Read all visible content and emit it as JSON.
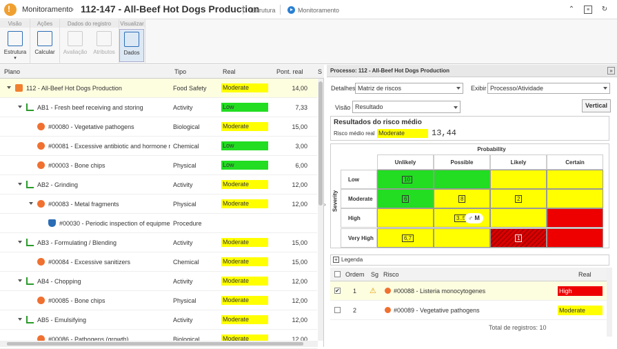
{
  "header": {
    "module": "Monitoramento",
    "title": "112-147 - All-Beef Hot Dogs Production",
    "link_estrutura": "Estrutura",
    "link_monitoramento": "Monitoramento"
  },
  "toolbar": {
    "groups": [
      "Visão",
      "Ações",
      "Dados do registro",
      "Visualizar"
    ],
    "buttons": {
      "estrutura": "Estrutura",
      "calcular": "Calcular",
      "avaliacao": "Avaliação",
      "atributos": "Atributos",
      "dados": "Dados"
    }
  },
  "grid": {
    "columns": {
      "plano": "Plano",
      "tipo": "Tipo",
      "real": "Real",
      "pont": "Pont. real",
      "s": "S"
    },
    "rows": [
      {
        "name": "112 - All-Beef Hot Dogs Production",
        "tipo": "Food Safety",
        "real": "Moderate",
        "pont": "14,00"
      },
      {
        "name": "AB1 - Fresh beef receiving and storing",
        "tipo": "Activity",
        "real": "Low",
        "pont": "7,33"
      },
      {
        "name": "#00080 - Vegetative pathogens",
        "tipo": "Biological",
        "real": "Moderate",
        "pont": "15,00"
      },
      {
        "name": "#00081 - Excessive antibiotic and hormone residues",
        "tipo": "Chemical",
        "real": "Low",
        "pont": "3,00"
      },
      {
        "name": "#00003 - Bone chips",
        "tipo": "Physical",
        "real": "Low",
        "pont": "6,00"
      },
      {
        "name": "AB2 - Grinding",
        "tipo": "Activity",
        "real": "Moderate",
        "pont": "12,00"
      },
      {
        "name": "#00083 - Metal fragments",
        "tipo": "Physical",
        "real": "Moderate",
        "pont": "12,00"
      },
      {
        "name": "#00030 - Periodic inspection of equipment",
        "tipo": "Procedure",
        "real": "",
        "pont": ""
      },
      {
        "name": "AB3 - Formulating / Blending",
        "tipo": "Activity",
        "real": "Moderate",
        "pont": "15,00"
      },
      {
        "name": "#00084 - Excessive sanitizers",
        "tipo": "Chemical",
        "real": "Moderate",
        "pont": "15,00"
      },
      {
        "name": "AB4 - Chopping",
        "tipo": "Activity",
        "real": "Moderate",
        "pont": "12,00"
      },
      {
        "name": "#00085 - Bone chips",
        "tipo": "Physical",
        "real": "Moderate",
        "pont": "12,00"
      },
      {
        "name": "AB5 - Emulsifying",
        "tipo": "Activity",
        "real": "Moderate",
        "pont": "12,00"
      },
      {
        "name": "#00086 - Pathogens (growth)",
        "tipo": "Biological",
        "real": "Moderate",
        "pont": "12,00"
      }
    ]
  },
  "right": {
    "title": "Processo: 112 - All-Beef Hot Dogs Production",
    "detalhes_label": "Detalhes",
    "detalhes_value": "Matriz de riscos",
    "exibir_label": "Exibir",
    "exibir_value": "Processo/Atividade",
    "visao_label": "Visão",
    "visao_value": "Resultado",
    "vertical_btn": "Vertical",
    "results_title": "Resultados do risco médio",
    "risco_label": "Risco médio real",
    "risco_value": "Moderate",
    "risco_score": "13,44",
    "matrix": {
      "x_title": "Probability",
      "y_title": "Severity",
      "cols": [
        "Unlikely",
        "Possible",
        "Likely",
        "Certain"
      ],
      "rows": [
        "Low",
        "Moderate",
        "High",
        "Very High"
      ],
      "counts": {
        "low_unlikely": "10",
        "mod_unlikely": "6",
        "mod_possible": "8",
        "mod_likely": "2",
        "high_possible": "3..5",
        "vh_unlikely": "6,7",
        "vh_likely": "1"
      },
      "marker": "M"
    },
    "legend": "Legenda",
    "table": {
      "cols": {
        "ordem": "Ordem",
        "sg": "Sg",
        "risco": "Risco",
        "real": "Real"
      },
      "rows": [
        {
          "ordem": "1",
          "risco": "#00088 - Listeria monocytogenes",
          "real": "High"
        },
        {
          "ordem": "2",
          "risco": "#00089 - Vegetative pathogens",
          "real": "Moderate"
        }
      ],
      "total": "Total de registros: 10"
    }
  },
  "colors": {
    "yellow": "#ffff00",
    "green": "#22dd22",
    "red": "#ee0000"
  }
}
